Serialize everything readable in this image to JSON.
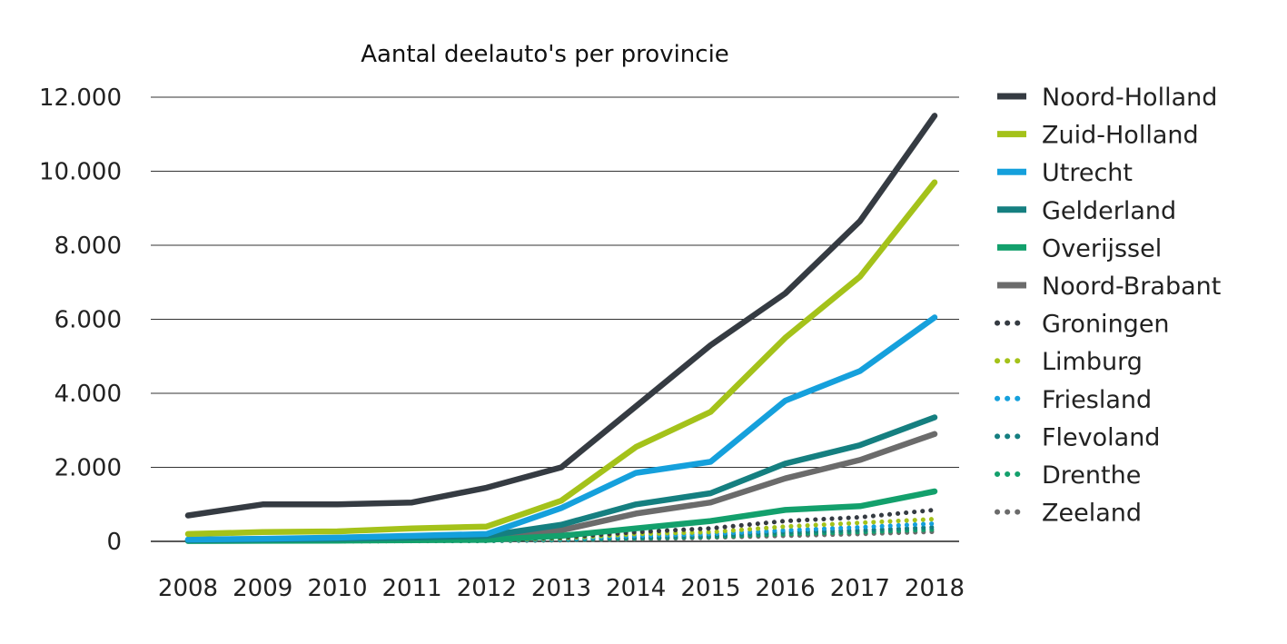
{
  "chart_data": {
    "type": "line",
    "title": "Aantal deelauto's per provincie",
    "xlabel": "",
    "ylabel": "",
    "x": [
      "2008",
      "2009",
      "2010",
      "2011",
      "2012",
      "2013",
      "2014",
      "2015",
      "2016",
      "2017",
      "2018"
    ],
    "ylim": [
      0,
      12000
    ],
    "yticks": [
      0,
      2000,
      4000,
      6000,
      8000,
      10000,
      12000
    ],
    "ytick_labels": [
      "0",
      "2.000",
      "4.000",
      "6.000",
      "8.000",
      "10.000",
      "12.000"
    ],
    "grid": "horizontal",
    "legend_position": "right",
    "series": [
      {
        "name": "Noord-Holland",
        "color": "#353b42",
        "style": "solid",
        "values": [
          700,
          1000,
          1000,
          1050,
          1450,
          2000,
          3650,
          5300,
          6700,
          8650,
          11500
        ]
      },
      {
        "name": "Zuid-Holland",
        "color": "#a4c21a",
        "style": "solid",
        "values": [
          200,
          250,
          270,
          350,
          400,
          1100,
          2550,
          3500,
          5500,
          7150,
          9700
        ]
      },
      {
        "name": "Utrecht",
        "color": "#15a0dc",
        "style": "solid",
        "values": [
          50,
          70,
          100,
          150,
          200,
          900,
          1850,
          2150,
          3800,
          4600,
          6050
        ]
      },
      {
        "name": "Gelderland",
        "color": "#157f80",
        "style": "solid",
        "values": [
          30,
          50,
          70,
          100,
          150,
          450,
          1000,
          1300,
          2100,
          2600,
          3350
        ]
      },
      {
        "name": "Overijssel",
        "color": "#13a06c",
        "style": "solid",
        "values": [
          10,
          15,
          20,
          30,
          40,
          150,
          350,
          550,
          850,
          950,
          1350
        ]
      },
      {
        "name": "Noord-Brabant",
        "color": "#6b6b6b",
        "style": "solid",
        "values": [
          30,
          50,
          70,
          100,
          120,
          300,
          750,
          1050,
          1700,
          2200,
          2900
        ]
      },
      {
        "name": "Groningen",
        "color": "#353b42",
        "style": "dotted",
        "values": [
          10,
          15,
          20,
          30,
          40,
          100,
          250,
          350,
          550,
          650,
          850
        ]
      },
      {
        "name": "Limburg",
        "color": "#a4c21a",
        "style": "dotted",
        "values": [
          5,
          10,
          15,
          20,
          30,
          80,
          200,
          250,
          400,
          500,
          600
        ]
      },
      {
        "name": "Friesland",
        "color": "#15a0dc",
        "style": "dotted",
        "values": [
          5,
          10,
          15,
          20,
          25,
          60,
          150,
          200,
          300,
          380,
          480
        ]
      },
      {
        "name": "Flevoland",
        "color": "#157f80",
        "style": "dotted",
        "values": [
          5,
          5,
          10,
          15,
          20,
          50,
          100,
          150,
          250,
          300,
          380
        ]
      },
      {
        "name": "Drenthe",
        "color": "#13a06c",
        "style": "dotted",
        "values": [
          0,
          5,
          5,
          10,
          15,
          40,
          80,
          120,
          200,
          250,
          320
        ]
      },
      {
        "name": "Zeeland",
        "color": "#6b6b6b",
        "style": "dotted",
        "values": [
          0,
          5,
          5,
          10,
          10,
          30,
          60,
          100,
          150,
          200,
          260
        ]
      }
    ]
  }
}
